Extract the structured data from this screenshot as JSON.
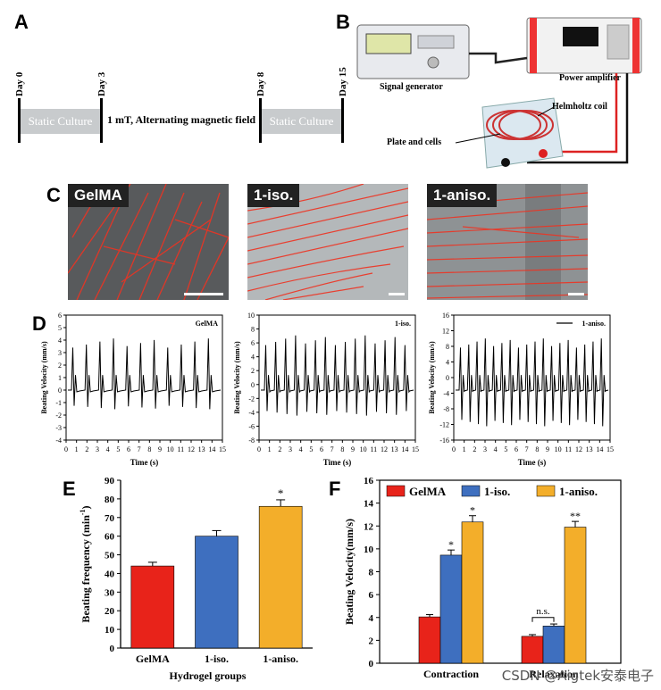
{
  "panels": {
    "a": "A",
    "b": "B",
    "c": "C",
    "d": "D",
    "e": "E",
    "f": "F"
  },
  "timeline": {
    "days": [
      "Day 0",
      "Day 3",
      "Day 8",
      "Day 15"
    ],
    "static_label_1": "Static Culture",
    "static_label_2": "Static Culture",
    "field_label": "1 mT, Alternating magnetic field"
  },
  "setup": {
    "signal_generator": "Signal generator",
    "power_amplifier": "Power amplifier",
    "helmholtz_coil": "Helmholtz coil",
    "plate_and_cells": "Plate and cells"
  },
  "micrographs": [
    {
      "label": "GelMA"
    },
    {
      "label": "1-iso."
    },
    {
      "label": "1-aniso."
    }
  ],
  "traces": [
    {
      "legend": "GelMA",
      "ylabel": "Beating Velocity (mm/s)",
      "xlabel": "Time (s)",
      "yticks": [
        "6",
        "5",
        "4",
        "3",
        "2",
        "1",
        "0",
        "-1",
        "-2",
        "-3",
        "-4"
      ],
      "xticks": [
        "0",
        "1",
        "2",
        "3",
        "4",
        "5",
        "6",
        "7",
        "8",
        "9",
        "10",
        "11",
        "12",
        "13",
        "14",
        "15"
      ]
    },
    {
      "legend": "1-iso.",
      "ylabel": "Beating Velocity (mm/s)",
      "xlabel": "Time (s)",
      "yticks": [
        "10",
        "8",
        "6",
        "4",
        "2",
        "0",
        "-2",
        "-4",
        "-6",
        "-8"
      ],
      "xticks": [
        "0",
        "1",
        "2",
        "3",
        "4",
        "5",
        "6",
        "7",
        "8",
        "9",
        "10",
        "11",
        "12",
        "13",
        "14",
        "15"
      ]
    },
    {
      "legend": "1-aniso.",
      "ylabel": "Beating Velocity (mm/s)",
      "xlabel": "Time (s)",
      "yticks": [
        "16",
        "12",
        "8",
        "4",
        "0",
        "-4",
        "-8",
        "-12",
        "-16"
      ],
      "xticks": [
        "0",
        "1",
        "2",
        "3",
        "4",
        "5",
        "6",
        "7",
        "8",
        "9",
        "10",
        "11",
        "12",
        "13",
        "14",
        "15"
      ]
    }
  ],
  "chart_data": [
    {
      "type": "bar",
      "categories": [
        "GelMA",
        "1-iso.",
        "1-aniso."
      ],
      "values": [
        44,
        60,
        76
      ],
      "errors": [
        2,
        3,
        3.5
      ],
      "colors": [
        "#e8231a",
        "#3e6fbf",
        "#f3ae2a"
      ],
      "significance": [
        "",
        "",
        "*"
      ],
      "xlabel": "Hydrogel groups",
      "ylabel": "Beating frequency (min",
      "ylabel_sup": "-1",
      "ylabel_end": ")",
      "ylim": [
        0,
        90
      ],
      "yticks": [
        "0",
        "10",
        "20",
        "30",
        "40",
        "50",
        "60",
        "70",
        "80",
        "90"
      ]
    },
    {
      "type": "bar",
      "categories": [
        "Contraction",
        "Relaxation"
      ],
      "series": [
        {
          "name": "GelMA",
          "color": "#e8231a",
          "values": [
            4.05,
            2.35
          ],
          "errors": [
            0.2,
            0.15
          ]
        },
        {
          "name": "1-iso.",
          "color": "#3e6fbf",
          "values": [
            9.45,
            3.25
          ],
          "errors": [
            0.45,
            0.18
          ]
        },
        {
          "name": "1-aniso.",
          "color": "#f3ae2a",
          "values": [
            12.35,
            11.9
          ],
          "errors": [
            0.55,
            0.5
          ]
        }
      ],
      "significance": [
        [
          "",
          "*",
          "*"
        ],
        [
          "",
          "",
          "**"
        ]
      ],
      "bracket_label": "n.s.",
      "ylabel": "Beating Velocity(mm/s)",
      "ylim": [
        0,
        16
      ],
      "yticks": [
        "0",
        "2",
        "4",
        "6",
        "8",
        "10",
        "12",
        "14",
        "16"
      ],
      "legend": "top"
    }
  ],
  "watermark": "CSDN @Aigtek安泰电子"
}
